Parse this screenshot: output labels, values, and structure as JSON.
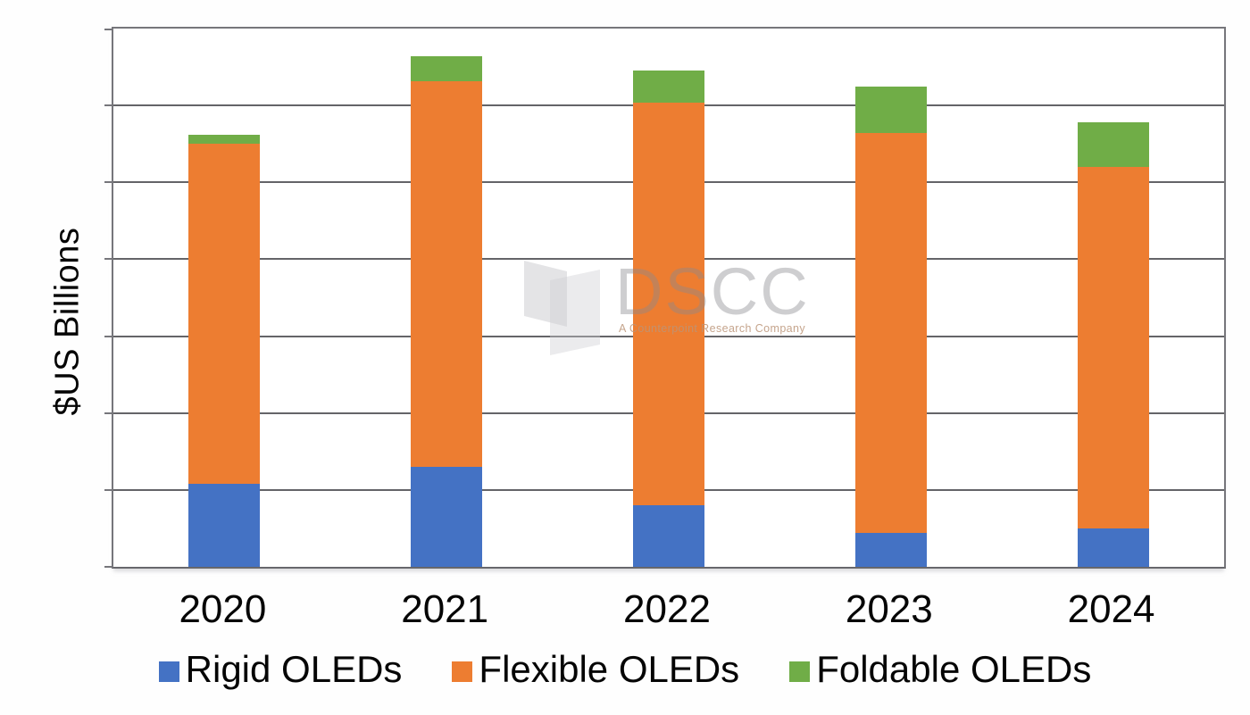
{
  "chart_data": {
    "type": "bar",
    "stacked": true,
    "categories": [
      "2020",
      "2021",
      "2022",
      "2023",
      "2024"
    ],
    "series": [
      {
        "name": "Rigid OLEDs",
        "color": "#4472C4",
        "values": [
          5.4,
          6.5,
          4.0,
          2.2,
          2.5
        ]
      },
      {
        "name": "Flexible OLEDs",
        "color": "#ED7D31",
        "values": [
          22.1,
          25.1,
          26.2,
          26.0,
          23.5
        ]
      },
      {
        "name": "Foldable OLEDs",
        "color": "#70AD47",
        "values": [
          0.6,
          1.6,
          2.1,
          3.0,
          2.9
        ]
      }
    ],
    "title": "",
    "xlabel": "",
    "ylabel": "$US Billions",
    "ylim": [
      0,
      35
    ],
    "gridline_interval": 5,
    "y_tick_labels_shown": false,
    "grid": true,
    "legend_position": "bottom"
  },
  "watermark": {
    "title": "DSCC",
    "tagline": "A Counterpoint Research Company"
  },
  "colors": {
    "rigid_blue": "#4472C4",
    "flexible_orange": "#ED7D31",
    "foldable_green": "#70AD47",
    "gridline": "#646468",
    "plot_border": "#76767b",
    "label_text": "#050505"
  }
}
